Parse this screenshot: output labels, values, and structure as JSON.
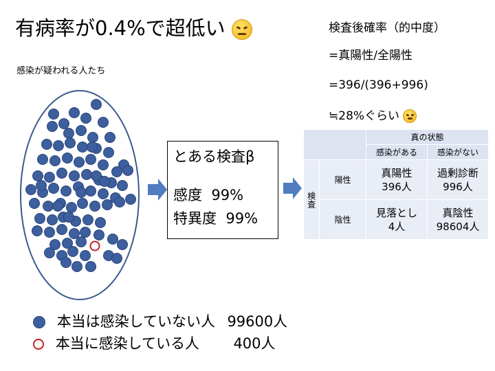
{
  "title": {
    "text": "有病率が0.4%で超低い"
  },
  "subtitle": "感染が疑われる人たち",
  "formula": {
    "line1": "検査後確率（的中度）",
    "line2": "=真陽性/全陽性",
    "line3": "=396/(396+996)",
    "line4": "≒28%ぐらい"
  },
  "test_box": {
    "name": "とある検査β",
    "sensitivity_label": "感度",
    "sensitivity_value": "99%",
    "specificity_label": "特異度",
    "specificity_value": "99%"
  },
  "table": {
    "top_header": "真の状態",
    "col_infected": "感染がある",
    "col_not_infected": "感染がない",
    "row_group": "検査",
    "row_positive": "陽性",
    "row_negative": "陰性",
    "tp_label": "真陽性",
    "tp_value": "396人",
    "fp_label": "過剰診断",
    "fp_value": "996人",
    "fn_label": "見落とし",
    "fn_value": "4人",
    "tn_label": "真陰性",
    "tn_value": "98604人"
  },
  "legend": {
    "not_infected_label": "本当は感染していない人",
    "not_infected_count": "99600人",
    "infected_label": "本当に感染している人",
    "infected_count": "400人"
  },
  "colors": {
    "healthy_face": "#3d5f9e",
    "infected_face": "#c82020",
    "ellipse_stroke": "#3a5a8c",
    "arrow": "#4f7dbf"
  }
}
